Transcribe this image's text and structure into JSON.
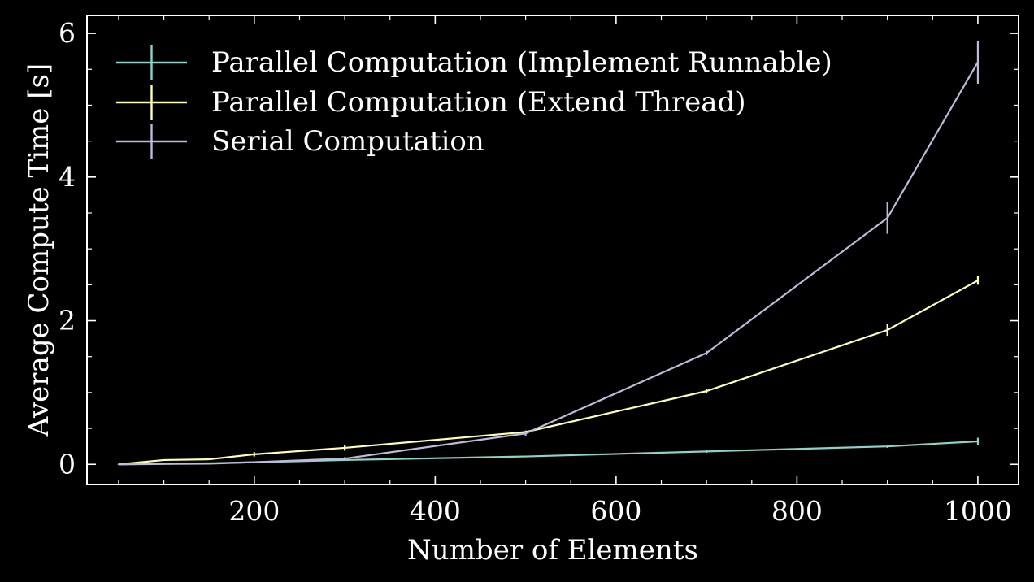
{
  "chart_data": {
    "type": "line",
    "xlabel": "Number of Elements",
    "ylabel": "Average Compute Time [s]",
    "xlim": [
      15,
      1045
    ],
    "ylim": [
      -0.28,
      6.25
    ],
    "xticks": [
      200,
      400,
      600,
      800,
      1000
    ],
    "yticks": [
      0,
      2,
      4,
      6
    ],
    "xtick_labels": [
      "200",
      "400",
      "600",
      "800",
      "1000"
    ],
    "ytick_labels": [
      "0",
      "2",
      "4",
      "6"
    ],
    "x_minor_step": 50,
    "y_minor_step": 0.5,
    "grid": false,
    "legend_position": "top-left",
    "background": "#000000",
    "series": [
      {
        "name": "Parallel Computation (Implement Runnable)",
        "color": "#8dd3c7",
        "x": [
          50,
          100,
          150,
          200,
          300,
          500,
          700,
          900,
          1000
        ],
        "y": [
          0.0,
          0.01,
          0.015,
          0.03,
          0.06,
          0.11,
          0.18,
          0.25,
          0.32
        ],
        "err": [
          0.005,
          0.005,
          0.005,
          0.01,
          0.01,
          0.01,
          0.02,
          0.02,
          0.05
        ]
      },
      {
        "name": "Parallel Computation (Extend Thread)",
        "color": "#ffffb3",
        "x": [
          50,
          100,
          150,
          200,
          300,
          500,
          700,
          900,
          1000
        ],
        "y": [
          0.0,
          0.06,
          0.07,
          0.14,
          0.23,
          0.45,
          1.02,
          1.87,
          2.56
        ],
        "err": [
          0.005,
          0.01,
          0.01,
          0.03,
          0.04,
          0.02,
          0.03,
          0.08,
          0.06
        ]
      },
      {
        "name": "Serial Computation",
        "color": "#bebada",
        "x": [
          50,
          100,
          150,
          200,
          300,
          500,
          700,
          900,
          1000
        ],
        "y": [
          0.0,
          0.005,
          0.01,
          0.03,
          0.08,
          0.43,
          1.55,
          3.43,
          5.6
        ],
        "err": [
          0.005,
          0.005,
          0.005,
          0.01,
          0.02,
          0.03,
          0.03,
          0.22,
          0.3
        ]
      }
    ]
  }
}
